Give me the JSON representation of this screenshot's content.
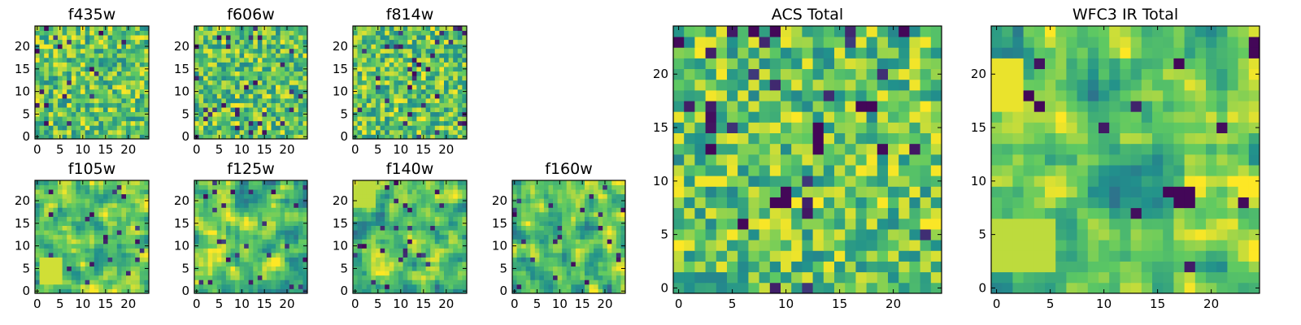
{
  "figure": {
    "background": "#ffffff",
    "colormap": "viridis",
    "colormap_stops": [
      "#440154",
      "#3b528b",
      "#21918c",
      "#5ec962",
      "#fde725"
    ]
  },
  "chart_data": [
    {
      "type": "heatmap",
      "title": "f435w",
      "grid_size": 25,
      "xlim": [
        0,
        24
      ],
      "ylim": [
        0,
        24
      ],
      "xticks": [
        0,
        5,
        10,
        15,
        20
      ],
      "yticks": [
        0,
        5,
        10,
        15,
        20
      ],
      "texture": "fine uniform noise, mostly green-yellow with sparse dark pixels",
      "seed": 11,
      "dark_fraction": 0.04
    },
    {
      "type": "heatmap",
      "title": "f606w",
      "grid_size": 25,
      "xlim": [
        0,
        24
      ],
      "ylim": [
        0,
        24
      ],
      "xticks": [
        0,
        5,
        10,
        15,
        20
      ],
      "yticks": [
        0,
        5,
        10,
        15,
        20
      ],
      "texture": "fine uniform noise, yellow-green",
      "seed": 23,
      "dark_fraction": 0.04
    },
    {
      "type": "heatmap",
      "title": "f814w",
      "grid_size": 25,
      "xlim": [
        0,
        24
      ],
      "ylim": [
        0,
        24
      ],
      "xticks": [
        0,
        5,
        10,
        15,
        20
      ],
      "yticks": [
        0,
        5,
        10,
        15,
        20
      ],
      "texture": "fine uniform noise, green-yellow",
      "seed": 37,
      "dark_fraction": 0.05
    },
    {
      "type": "heatmap",
      "title": "f105w",
      "grid_size": 25,
      "xlim": [
        0,
        24
      ],
      "ylim": [
        0,
        24
      ],
      "xticks": [
        0,
        5,
        10,
        15,
        20
      ],
      "yticks": [
        0,
        5,
        10,
        15,
        20
      ],
      "texture": "smoothed noise, bright patch lower-left",
      "seed": 41,
      "dark_fraction": 0.03
    },
    {
      "type": "heatmap",
      "title": "f125w",
      "grid_size": 25,
      "xlim": [
        0,
        24
      ],
      "ylim": [
        0,
        24
      ],
      "xticks": [
        0,
        5,
        10,
        15,
        20
      ],
      "yticks": [
        0,
        5,
        10,
        15,
        20
      ],
      "texture": "smoothed noise, mixed green with dark pixels",
      "seed": 53,
      "dark_fraction": 0.05
    },
    {
      "type": "heatmap",
      "title": "f140w",
      "grid_size": 25,
      "xlim": [
        0,
        24
      ],
      "ylim": [
        0,
        24
      ],
      "xticks": [
        0,
        5,
        10,
        15,
        20
      ],
      "yticks": [
        0,
        5,
        10,
        15,
        20
      ],
      "texture": "smoothed noise, yellow upper-left",
      "seed": 67,
      "dark_fraction": 0.03
    },
    {
      "type": "heatmap",
      "title": "f160w",
      "grid_size": 25,
      "xlim": [
        0,
        24
      ],
      "ylim": [
        0,
        24
      ],
      "xticks": [
        0,
        5,
        10,
        15,
        20
      ],
      "yticks": [
        0,
        5,
        10,
        15,
        20
      ],
      "texture": "smoothed noise, green with dark pixels",
      "seed": 79,
      "dark_fraction": 0.05
    },
    {
      "type": "heatmap",
      "title": "ACS Total",
      "grid_size": 25,
      "xlim": [
        0,
        24
      ],
      "ylim": [
        0,
        24
      ],
      "xticks": [
        0,
        5,
        10,
        15,
        20
      ],
      "yticks": [
        0,
        5,
        10,
        15,
        20
      ],
      "texture": "uniform noise, green-yellow with dark clusters near center",
      "seed": 97,
      "dark_fraction": 0.04,
      "dark_cells": [
        [
          13,
          13
        ],
        [
          13,
          14
        ],
        [
          13,
          15
        ],
        [
          3,
          13
        ],
        [
          10,
          9
        ],
        [
          10,
          8
        ],
        [
          9,
          8
        ],
        [
          6,
          6
        ],
        [
          18,
          17
        ],
        [
          17,
          17
        ],
        [
          7,
          24
        ],
        [
          9,
          24
        ],
        [
          21,
          24
        ]
      ]
    },
    {
      "type": "heatmap",
      "title": "WFC3 IR Total",
      "grid_size": 25,
      "xlim": [
        0,
        24
      ],
      "ylim": [
        0,
        24
      ],
      "xticks": [
        0,
        5,
        10,
        15,
        20
      ],
      "yticks": [
        0,
        5,
        10,
        15,
        20
      ],
      "texture": "smooth noise, bright upper-left and lower-left, dark cluster right-center",
      "seed": 109,
      "dark_fraction": 0.02,
      "dark_cells": [
        [
          17,
          8
        ],
        [
          18,
          8
        ],
        [
          17,
          9
        ],
        [
          18,
          9
        ],
        [
          16,
          9
        ],
        [
          4,
          17
        ],
        [
          3,
          18
        ],
        [
          17,
          21
        ],
        [
          24,
          23
        ],
        [
          24,
          22
        ]
      ]
    }
  ]
}
